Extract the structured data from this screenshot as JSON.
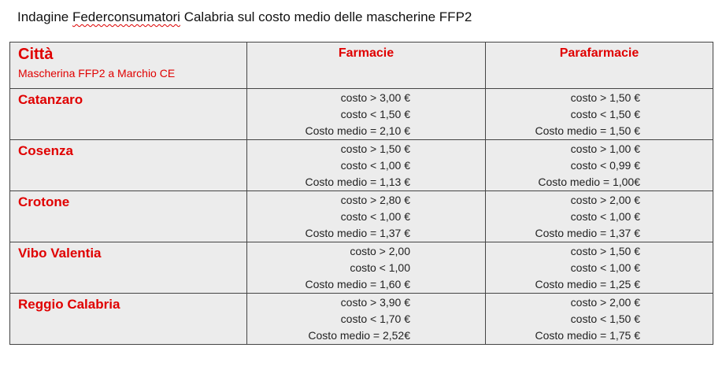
{
  "title": {
    "before": "Indagine ",
    "spell": "Federconsumatori",
    "after": " Calabria sul costo medio delle mascherine FFP2"
  },
  "header": {
    "city": "Città",
    "subtitle": "Mascherina FFP2 a Marchio CE",
    "farmacie": "Farmacie",
    "parafarmacie": "Parafarmacie"
  },
  "rows": [
    {
      "city": "Catanzaro",
      "farmacie": [
        "costo >  3,00 €",
        "costo <  1,50  €",
        "Costo medio =  2,10  €"
      ],
      "parafarmacie": [
        "costo > 1,50 €",
        "costo < 1,50 €",
        "Costo medio = 1,50 €"
      ]
    },
    {
      "city": "Cosenza",
      "farmacie": [
        "costo > 1,50 €",
        "costo < 1,00 €",
        "Costo medio = 1,13 €"
      ],
      "parafarmacie": [
        "costo > 1,00 €",
        "costo < 0,99 €",
        "Costo medio = 1,00€"
      ]
    },
    {
      "city": "Crotone",
      "farmacie": [
        "costo > 2,80 €",
        "costo < 1,00 €",
        "Costo medio = 1,37 €"
      ],
      "parafarmacie": [
        "costo > 2,00 €",
        "costo < 1,00 €",
        "Costo medio = 1,37 €"
      ]
    },
    {
      "city": "Vibo Valentia",
      "farmacie": [
        "costo > 2,00",
        "costo < 1,00",
        "Costo medio = 1,60 €"
      ],
      "parafarmacie": [
        "costo > 1,50 €",
        "costo < 1,00 €",
        "Costo medio = 1,25 €"
      ]
    },
    {
      "city": "Reggio Calabria",
      "farmacie": [
        "costo > 3,90 €",
        "costo < 1,70 €",
        "Costo medio = 2,52€"
      ],
      "parafarmacie": [
        "costo > 2,00 €",
        "costo < 1,50 €",
        "Costo medio = 1,75 €"
      ]
    }
  ]
}
